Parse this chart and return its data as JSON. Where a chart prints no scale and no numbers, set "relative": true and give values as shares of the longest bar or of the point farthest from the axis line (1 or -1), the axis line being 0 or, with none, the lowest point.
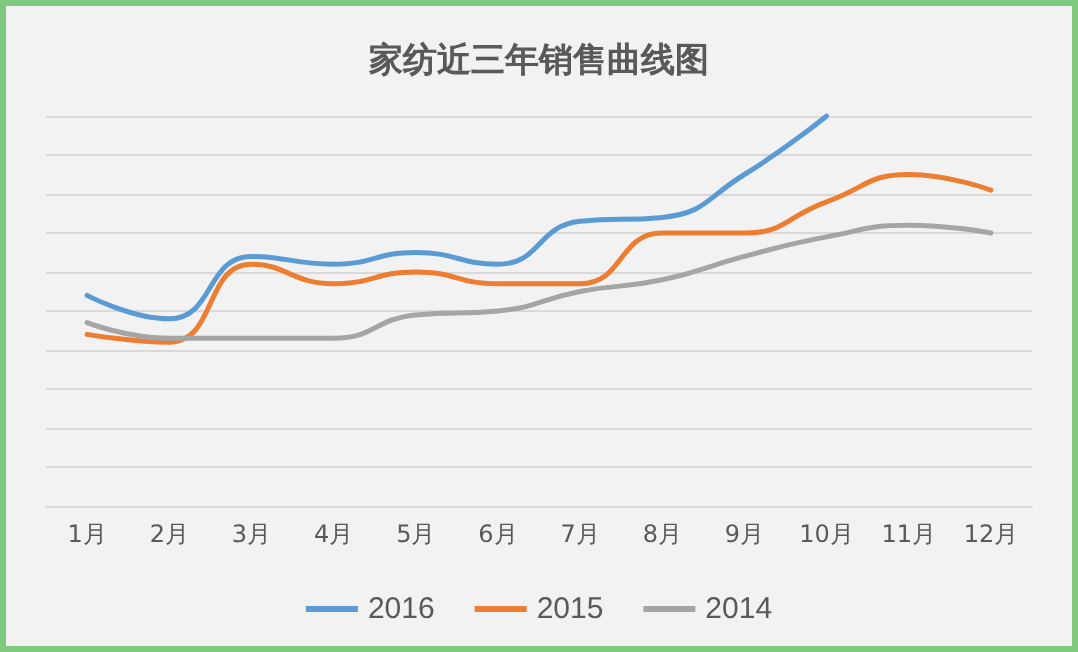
{
  "chart_data": {
    "type": "line",
    "title": "家纺近三年销售曲线图",
    "relative": true,
    "categories": [
      "1月",
      "2月",
      "3月",
      "4月",
      "5月",
      "6月",
      "7月",
      "8月",
      "9月",
      "10月",
      "11月",
      "12月"
    ],
    "series": [
      {
        "name": "2016",
        "color": "#5b9bd5",
        "values": [
          0.54,
          0.48,
          0.64,
          0.62,
          0.65,
          0.62,
          0.73,
          0.74,
          0.85,
          1,
          null,
          null
        ]
      },
      {
        "name": "2015",
        "color": "#ed7d31",
        "values": [
          0.44,
          0.42,
          0.62,
          0.57,
          0.6,
          0.57,
          0.57,
          0.7,
          0.7,
          0.78,
          0.85,
          0.81
        ]
      },
      {
        "name": "2014",
        "color": "#a5a5a5",
        "values": [
          0.47,
          0.43,
          0.43,
          0.43,
          0.49,
          0.5,
          0.55,
          0.58,
          0.64,
          0.69,
          0.72,
          0.7
        ]
      }
    ],
    "grid": "y",
    "legend": "bottom",
    "marker": "none",
    "line_style": "solid"
  }
}
